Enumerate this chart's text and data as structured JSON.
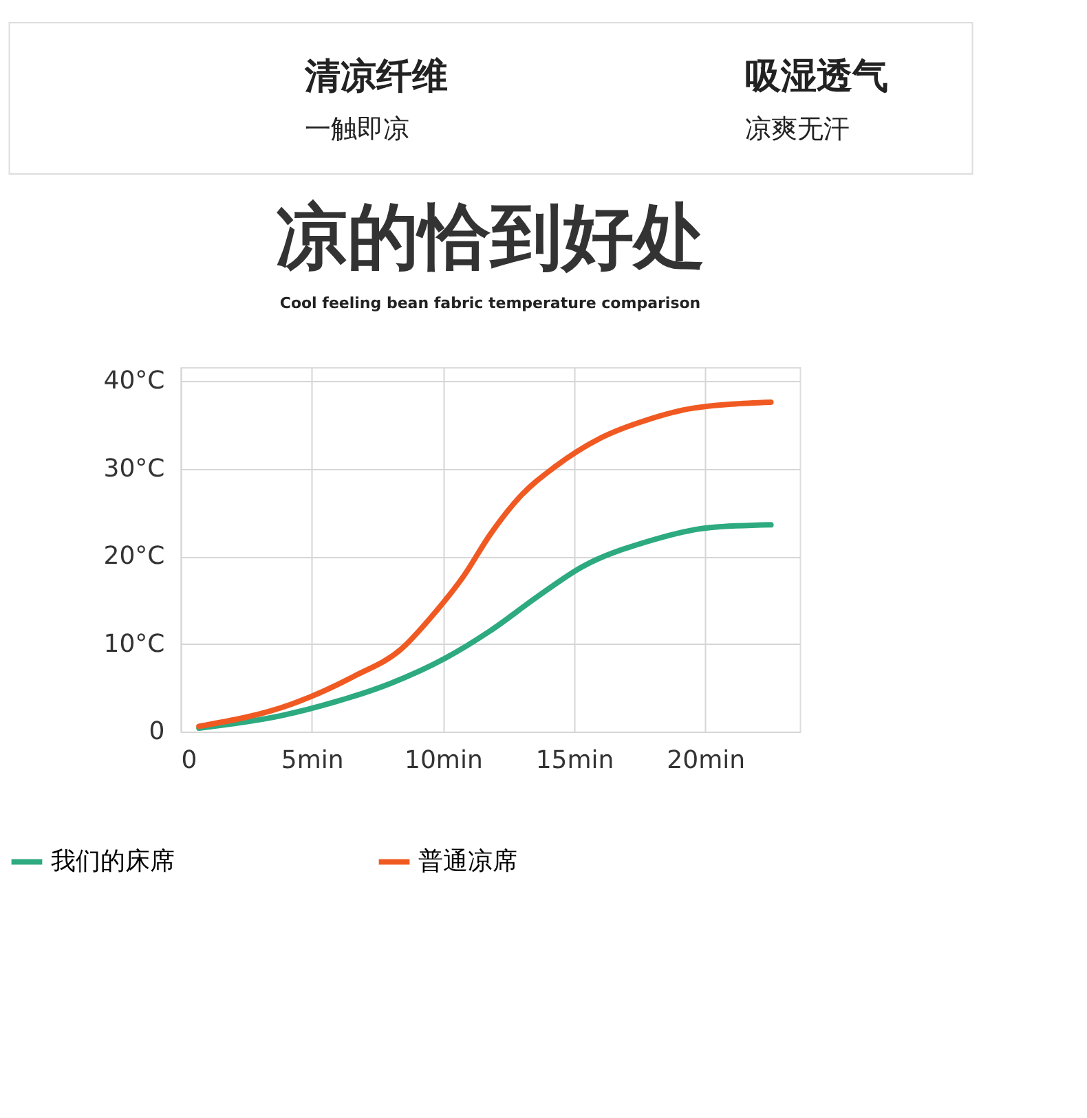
{
  "chart_data": {
    "type": "line",
    "title": "凉的恰到好处",
    "subtitle": "Cool feeling bean fabric temperature comparison",
    "annotations": [
      "清凉纤维",
      "一触即凉",
      "吸湿透气",
      "凉爽无汗"
    ],
    "xlim": [
      0,
      23.6
    ],
    "ylim": [
      0,
      41.6
    ],
    "xticks": [
      0,
      {
        "value": 5,
        "label": "5min"
      },
      {
        "value": 10,
        "label": "10min"
      },
      {
        "value": 15,
        "label": "15min"
      },
      {
        "value": 20,
        "label": "20min"
      }
    ],
    "yticks": [
      0,
      {
        "value": 10,
        "label": "10°C"
      },
      {
        "value": 20,
        "label": "20°C"
      },
      {
        "value": 30,
        "label": "30°C"
      },
      {
        "value": 40,
        "label": "40°C"
      }
    ],
    "grid": true,
    "legend": "bottom",
    "marker": "none",
    "line_style": "solid",
    "series": [
      {
        "name": "我们的床席",
        "color": "#2daa80",
        "x": [
          0.7,
          3.8,
          5.9,
          8.0,
          10.1,
          11.8,
          13.6,
          15.3,
          17.8,
          20.2,
          22.5
        ],
        "values": [
          0.4,
          1.8,
          3.4,
          5.5,
          8.4,
          11.5,
          15.4,
          18.8,
          21.7,
          23.3,
          23.6
        ]
      },
      {
        "name": "普通凉席",
        "color": "#f05a22",
        "x": [
          0.7,
          4.2,
          6.6,
          8.4,
          9.7,
          10.8,
          11.8,
          12.9,
          14.3,
          16.0,
          17.8,
          19.5,
          22.5
        ],
        "values": [
          0.6,
          3.1,
          6.3,
          9.4,
          13.6,
          17.8,
          22.5,
          26.7,
          30.3,
          33.5,
          35.6,
          36.9,
          37.6
        ]
      }
    ]
  }
}
